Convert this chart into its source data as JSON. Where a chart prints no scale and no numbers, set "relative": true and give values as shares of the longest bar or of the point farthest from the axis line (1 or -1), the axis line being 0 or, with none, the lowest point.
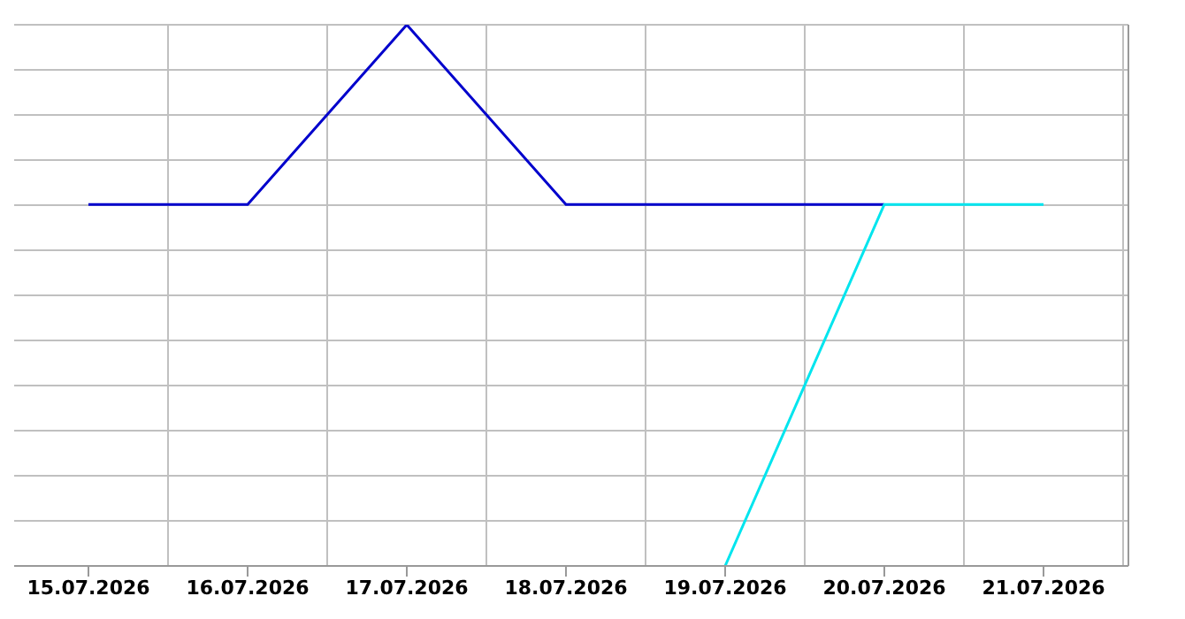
{
  "chart_data": {
    "type": "line",
    "relative": true,
    "grid": true,
    "x": [
      "2026-07-15",
      "2026-07-16",
      "2026-07-17",
      "2026-07-18",
      "2026-07-19",
      "2026-07-20",
      "2026-07-21"
    ],
    "xlim": [
      "2026-07-14T12:48",
      "2026-07-21T12:48"
    ],
    "xticks": [
      {
        "value": "2026-07-15",
        "label": "15.07.2026"
      },
      {
        "value": "2026-07-16",
        "label": "16.07.2026"
      },
      {
        "value": "2026-07-17",
        "label": "17.07.2026"
      },
      {
        "value": "2026-07-18",
        "label": "18.07.2026"
      },
      {
        "value": "2026-07-19",
        "label": "19.07.2026"
      },
      {
        "value": "2026-07-20",
        "label": "20.07.2026"
      },
      {
        "value": "2026-07-21",
        "label": "21.07.2026"
      },
      {
        "value": "2026-07-15T12:00",
        "label": null
      },
      {
        "value": "2026-07-16T12:00",
        "label": null
      },
      {
        "value": "2026-07-17T12:00",
        "label": null
      },
      {
        "value": "2026-07-18T12:00",
        "label": null
      },
      {
        "value": "2026-07-19T12:00",
        "label": null
      },
      {
        "value": "2026-07-20T12:00",
        "label": null
      },
      {
        "value": "2026-07-21T12:00",
        "label": null
      }
    ],
    "series": [
      {
        "color": "#0000cc",
        "values": [
          0.668,
          0.668,
          1,
          0.668,
          0.668,
          0.668,
          null
        ]
      },
      {
        "color": "#00e5ee",
        "values": [
          null,
          null,
          null,
          null,
          0,
          0.668,
          0.668
        ]
      }
    ]
  }
}
